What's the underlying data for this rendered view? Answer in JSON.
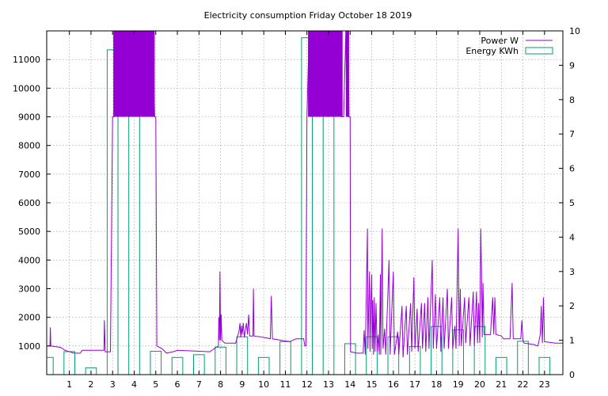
{
  "chart_data": {
    "type": "line",
    "title": "Electricity consumption Friday October 18 2019",
    "xlabel": "",
    "ylabel": "",
    "y2label": "",
    "xlim": [
      -0.05,
      23.85
    ],
    "ylim": [
      0,
      12000
    ],
    "y2lim": [
      0,
      10
    ],
    "x_ticks": [
      1,
      2,
      3,
      4,
      5,
      6,
      7,
      8,
      9,
      10,
      11,
      12,
      13,
      14,
      15,
      16,
      17,
      18,
      19,
      20,
      21,
      22,
      23
    ],
    "y_ticks": [
      1000,
      2000,
      3000,
      4000,
      5000,
      6000,
      7000,
      8000,
      9000,
      10000,
      11000
    ],
    "y2_ticks": [
      0,
      1,
      2,
      3,
      4,
      5,
      6,
      7,
      8,
      9,
      10
    ],
    "grid": true,
    "legend": "top-right",
    "colors": {
      "power": "#9400d3",
      "energy": "#009e73"
    },
    "series": [
      {
        "name": "Power W",
        "type": "line",
        "color": "#9400d3",
        "points": [
          [
            0,
            1000
          ],
          [
            0.1,
            1000
          ],
          [
            0.12,
            1650
          ],
          [
            0.14,
            1000
          ],
          [
            0.6,
            950
          ],
          [
            0.8,
            850
          ],
          [
            1.2,
            750
          ],
          [
            1.5,
            750
          ],
          [
            1.6,
            850
          ],
          [
            2.6,
            850
          ],
          [
            2.62,
            1900
          ],
          [
            2.66,
            800
          ],
          [
            2.9,
            800
          ],
          [
            3.0,
            9000
          ],
          [
            3.05,
            9000
          ],
          [
            3.05,
            12000
          ],
          [
            3.15,
            9000
          ],
          [
            3.25,
            12000
          ],
          [
            3.35,
            9000
          ],
          [
            3.45,
            12000
          ],
          [
            3.55,
            9000
          ],
          [
            3.65,
            12000
          ],
          [
            3.75,
            9000
          ],
          [
            3.85,
            12000
          ],
          [
            3.95,
            9000
          ],
          [
            4.05,
            12000
          ],
          [
            4.15,
            9000
          ],
          [
            4.25,
            12000
          ],
          [
            4.35,
            9000
          ],
          [
            4.45,
            12000
          ],
          [
            4.55,
            9000
          ],
          [
            4.65,
            12000
          ],
          [
            4.75,
            9000
          ],
          [
            4.85,
            12000
          ],
          [
            4.95,
            9000
          ],
          [
            5.0,
            9000
          ],
          [
            5.05,
            1000
          ],
          [
            5.3,
            900
          ],
          [
            5.5,
            750
          ],
          [
            5.8,
            800
          ],
          [
            6.0,
            850
          ],
          [
            7.5,
            800
          ],
          [
            7.7,
            900
          ],
          [
            7.9,
            1000
          ],
          [
            7.92,
            2000
          ],
          [
            7.95,
            1200
          ],
          [
            7.97,
            3600
          ],
          [
            8.0,
            1200
          ],
          [
            8.03,
            2100
          ],
          [
            8.06,
            1200
          ],
          [
            8.2,
            1100
          ],
          [
            8.7,
            1100
          ],
          [
            8.85,
            1500
          ],
          [
            8.9,
            1800
          ],
          [
            8.93,
            1300
          ],
          [
            8.97,
            1700
          ],
          [
            9.0,
            1400
          ],
          [
            9.05,
            1800
          ],
          [
            9.1,
            1300
          ],
          [
            9.2,
            1800
          ],
          [
            9.25,
            1400
          ],
          [
            9.3,
            2100
          ],
          [
            9.35,
            1350
          ],
          [
            9.5,
            1350
          ],
          [
            9.52,
            3000
          ],
          [
            9.55,
            1350
          ],
          [
            10.0,
            1300
          ],
          [
            10.3,
            1250
          ],
          [
            10.35,
            2750
          ],
          [
            10.4,
            1250
          ],
          [
            10.8,
            1200
          ],
          [
            11.2,
            1150
          ],
          [
            11.5,
            1250
          ],
          [
            11.85,
            1250
          ],
          [
            11.9,
            1000
          ],
          [
            11.95,
            1000
          ],
          [
            12.0,
            9000
          ],
          [
            12.1,
            12000
          ],
          [
            12.2,
            9000
          ],
          [
            12.3,
            12000
          ],
          [
            12.4,
            9000
          ],
          [
            12.5,
            12000
          ],
          [
            12.6,
            9000
          ],
          [
            12.7,
            12000
          ],
          [
            12.8,
            9000
          ],
          [
            12.9,
            12000
          ],
          [
            13.0,
            9000
          ],
          [
            13.1,
            12000
          ],
          [
            13.2,
            9000
          ],
          [
            13.3,
            12000
          ],
          [
            13.4,
            9000
          ],
          [
            13.5,
            12000
          ],
          [
            13.6,
            9000
          ],
          [
            13.7,
            9000
          ],
          [
            13.8,
            12000
          ],
          [
            13.85,
            9000
          ],
          [
            13.9,
            12000
          ],
          [
            13.95,
            9000
          ],
          [
            14.0,
            9000
          ],
          [
            14.02,
            800
          ],
          [
            14.3,
            750
          ],
          [
            14.6,
            750
          ],
          [
            14.65,
            1550
          ],
          [
            14.7,
            700
          ],
          [
            14.8,
            5100
          ],
          [
            14.82,
            900
          ],
          [
            14.87,
            2700
          ],
          [
            14.9,
            3600
          ],
          [
            14.92,
            800
          ],
          [
            14.96,
            2500
          ],
          [
            15.0,
            3500
          ],
          [
            15.02,
            900
          ],
          [
            15.05,
            2600
          ],
          [
            15.08,
            700
          ],
          [
            15.12,
            2700
          ],
          [
            15.15,
            800
          ],
          [
            15.2,
            2500
          ],
          [
            15.25,
            800
          ],
          [
            15.3,
            1400
          ],
          [
            15.35,
            700
          ],
          [
            15.4,
            3500
          ],
          [
            15.42,
            700
          ],
          [
            15.48,
            5100
          ],
          [
            15.52,
            900
          ],
          [
            15.6,
            1600
          ],
          [
            15.65,
            700
          ],
          [
            15.8,
            4000
          ],
          [
            15.85,
            700
          ],
          [
            16.0,
            3600
          ],
          [
            16.05,
            700
          ],
          [
            16.2,
            1500
          ],
          [
            16.25,
            700
          ],
          [
            16.4,
            2400
          ],
          [
            16.45,
            600
          ],
          [
            16.6,
            2400
          ],
          [
            16.65,
            700
          ],
          [
            16.8,
            2500
          ],
          [
            16.85,
            800
          ],
          [
            16.95,
            3400
          ],
          [
            17.0,
            900
          ],
          [
            17.1,
            2300
          ],
          [
            17.15,
            800
          ],
          [
            17.3,
            2500
          ],
          [
            17.35,
            900
          ],
          [
            17.45,
            2500
          ],
          [
            17.5,
            800
          ],
          [
            17.6,
            2700
          ],
          [
            17.65,
            900
          ],
          [
            17.8,
            4000
          ],
          [
            17.85,
            900
          ],
          [
            17.95,
            2800
          ],
          [
            18.0,
            900
          ],
          [
            18.15,
            2700
          ],
          [
            18.2,
            800
          ],
          [
            18.3,
            2700
          ],
          [
            18.35,
            900
          ],
          [
            18.5,
            3000
          ],
          [
            18.55,
            900
          ],
          [
            18.7,
            2700
          ],
          [
            18.75,
            900
          ],
          [
            18.85,
            1700
          ],
          [
            18.9,
            900
          ],
          [
            19.0,
            5100
          ],
          [
            19.05,
            1000
          ],
          [
            19.1,
            3000
          ],
          [
            19.15,
            1000
          ],
          [
            19.3,
            2700
          ],
          [
            19.35,
            1100
          ],
          [
            19.5,
            2700
          ],
          [
            19.55,
            1000
          ],
          [
            19.7,
            2900
          ],
          [
            19.75,
            1000
          ],
          [
            19.85,
            2900
          ],
          [
            19.9,
            1100
          ],
          [
            19.95,
            2500
          ],
          [
            20.0,
            1100
          ],
          [
            20.05,
            5100
          ],
          [
            20.08,
            3600
          ],
          [
            20.12,
            1300
          ],
          [
            20.15,
            3200
          ],
          [
            20.2,
            1400
          ],
          [
            20.5,
            1400
          ],
          [
            20.6,
            2700
          ],
          [
            20.65,
            1400
          ],
          [
            20.7,
            2700
          ],
          [
            20.75,
            1400
          ],
          [
            21.0,
            1350
          ],
          [
            21.1,
            1250
          ],
          [
            21.4,
            1250
          ],
          [
            21.5,
            3200
          ],
          [
            21.55,
            1250
          ],
          [
            21.9,
            1250
          ],
          [
            21.95,
            1900
          ],
          [
            22.0,
            1200
          ],
          [
            22.05,
            1100
          ],
          [
            22.5,
            1050
          ],
          [
            22.7,
            1000
          ],
          [
            22.8,
            1400
          ],
          [
            22.85,
            2400
          ],
          [
            22.9,
            1100
          ],
          [
            22.95,
            2700
          ],
          [
            23.0,
            1150
          ],
          [
            23.5,
            1100
          ],
          [
            23.85,
            1100
          ]
        ]
      },
      {
        "name": "Energy KWh",
        "type": "bar",
        "color": "#009e73",
        "x": [
          0,
          1,
          2,
          3,
          4,
          5,
          6,
          7,
          8,
          9,
          10,
          11,
          12,
          13,
          14,
          15,
          16,
          17,
          18,
          19,
          20,
          21,
          22,
          23
        ],
        "values": [
          0.5,
          0.67,
          0.2,
          9.45,
          9.55,
          0.68,
          0.5,
          0.58,
          0.8,
          1.1,
          0.5,
          0.96,
          9.8,
          8.3,
          0.9,
          1.1,
          1.1,
          0.82,
          1.4,
          1.3,
          1.4,
          0.5,
          0.97,
          0.5
        ]
      }
    ]
  }
}
